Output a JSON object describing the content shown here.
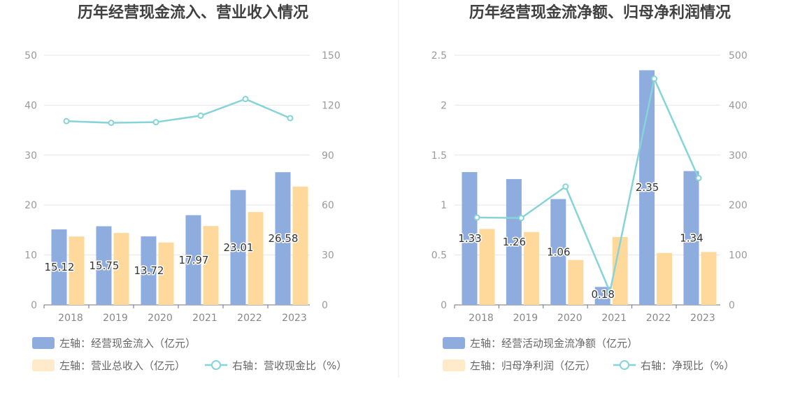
{
  "colors": {
    "bar_primary": "#8eadde",
    "bar_secondary": "#ffd99b",
    "legend_secondary": "#ffebc9",
    "line": "#86d3d8",
    "grid": "#e3e6ee",
    "divider": "#ebebeb"
  },
  "chart_data": [
    {
      "type": "bar",
      "title": "历年经营现金流入、营业收入情况",
      "categories": [
        "2018",
        "2019",
        "2020",
        "2021",
        "2022",
        "2023"
      ],
      "left_axis": {
        "min": 0,
        "max": 50,
        "ticks": [
          "0",
          "10",
          "20",
          "30",
          "40",
          "50"
        ]
      },
      "right_axis": {
        "min": 0,
        "max": 150,
        "ticks": [
          "0",
          "30",
          "60",
          "90",
          "120",
          "150"
        ]
      },
      "series": [
        {
          "name": "左轴：经营现金流入（亿元）",
          "kind": "bar",
          "axis": "left",
          "values": [
            15.12,
            15.75,
            13.72,
            17.97,
            23.01,
            26.58
          ],
          "labels": [
            "15.12",
            "15.75",
            "13.72",
            "17.97",
            "23.01",
            "26.58"
          ]
        },
        {
          "name": "左轴：营业总收入（亿元）",
          "kind": "bar",
          "axis": "left",
          "values": [
            13.7,
            14.4,
            12.5,
            15.8,
            18.6,
            23.7
          ]
        },
        {
          "name": "右轴：营收现金比（%）",
          "kind": "line",
          "axis": "right",
          "values": [
            110.4,
            109.4,
            109.8,
            113.7,
            123.7,
            112.2
          ]
        }
      ],
      "grid": true,
      "legend": "bottom-left"
    },
    {
      "type": "bar",
      "title": "历年经营现金流净额、归母净利润情况",
      "categories": [
        "2018",
        "2019",
        "2020",
        "2021",
        "2022",
        "2023"
      ],
      "left_axis": {
        "min": 0,
        "max": 2.5,
        "ticks": [
          "0",
          "0.5",
          "1",
          "1.5",
          "2",
          "2.5"
        ]
      },
      "right_axis": {
        "min": 0,
        "max": 500,
        "ticks": [
          "0",
          "100",
          "200",
          "300",
          "400",
          "500"
        ]
      },
      "series": [
        {
          "name": "左轴：经营活动现金流净额（亿元）",
          "kind": "bar",
          "axis": "left",
          "values": [
            1.33,
            1.26,
            1.06,
            0.18,
            2.35,
            1.34
          ],
          "labels": [
            "1.33",
            "1.26",
            "1.06",
            "0.18",
            "2.35",
            "1.34"
          ]
        },
        {
          "name": "左轴：归母净利润（亿元）",
          "kind": "bar",
          "axis": "left",
          "values": [
            0.76,
            0.73,
            0.45,
            0.68,
            0.52,
            0.53
          ]
        },
        {
          "name": "右轴：净现比（%）",
          "kind": "line",
          "axis": "right",
          "values": [
            175,
            174,
            237,
            26,
            453,
            254
          ]
        }
      ],
      "grid": true,
      "legend": "bottom-left"
    }
  ]
}
